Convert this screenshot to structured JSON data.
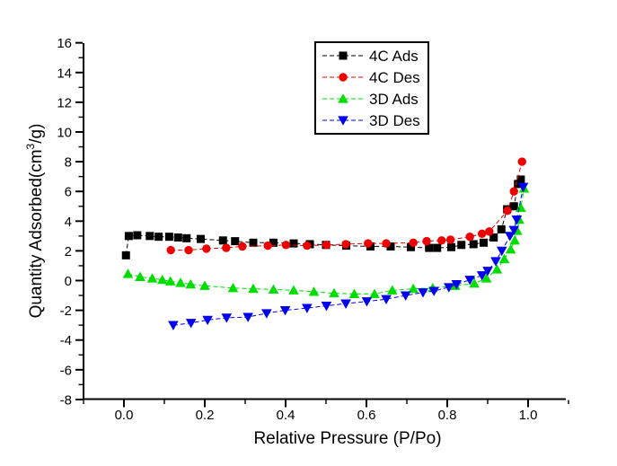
{
  "chart_data": {
    "type": "scatter",
    "title": "",
    "xlabel": "Relative Pressure (P/Po)",
    "ylabel": "Quantity Adsorbed(cm³/g)",
    "ylabel_parts": {
      "prefix": "Quantity Adsorbed(cm",
      "sup": "3",
      "suffix": "/g)"
    },
    "xlim": [
      -0.1,
      1.1
    ],
    "ylim": [
      -8,
      16
    ],
    "x_major_ticks": [
      0.0,
      0.2,
      0.4,
      0.6,
      0.8,
      1.0
    ],
    "x_minor_step": 0.1,
    "y_major_ticks": [
      -8,
      -6,
      -4,
      -2,
      0,
      2,
      4,
      6,
      8,
      10,
      12,
      14,
      16
    ],
    "y_minor_step": 1,
    "grid": false,
    "legend_position": "top-right-inside",
    "axis_color": "#000000",
    "background_color": "#ffffff",
    "line_style": "dashed",
    "series": [
      {
        "name": "4C Ads",
        "color": "#000000",
        "marker": "square",
        "points": [
          [
            0.005,
            1.7
          ],
          [
            0.012,
            3.0
          ],
          [
            0.033,
            3.05
          ],
          [
            0.064,
            3.0
          ],
          [
            0.086,
            2.95
          ],
          [
            0.112,
            2.95
          ],
          [
            0.134,
            2.9
          ],
          [
            0.155,
            2.85
          ],
          [
            0.19,
            2.8
          ],
          [
            0.245,
            2.7
          ],
          [
            0.275,
            2.65
          ],
          [
            0.32,
            2.55
          ],
          [
            0.37,
            2.55
          ],
          [
            0.42,
            2.5
          ],
          [
            0.46,
            2.45
          ],
          [
            0.5,
            2.4
          ],
          [
            0.55,
            2.35
          ],
          [
            0.61,
            2.3
          ],
          [
            0.66,
            2.3
          ],
          [
            0.71,
            2.25
          ],
          [
            0.755,
            2.2
          ],
          [
            0.775,
            2.2
          ],
          [
            0.81,
            2.25
          ],
          [
            0.835,
            2.4
          ],
          [
            0.865,
            2.45
          ],
          [
            0.89,
            2.55
          ],
          [
            0.915,
            2.9
          ],
          [
            0.934,
            3.45
          ],
          [
            0.948,
            4.8
          ],
          [
            0.965,
            5.0
          ],
          [
            0.975,
            6.5
          ],
          [
            0.982,
            6.8
          ]
        ]
      },
      {
        "name": "4C Des",
        "color": "#ee0000",
        "marker": "circle",
        "points": [
          [
            0.116,
            2.05
          ],
          [
            0.16,
            2.05
          ],
          [
            0.204,
            2.15
          ],
          [
            0.253,
            2.2
          ],
          [
            0.293,
            2.3
          ],
          [
            0.356,
            2.35
          ],
          [
            0.401,
            2.4
          ],
          [
            0.453,
            2.35
          ],
          [
            0.501,
            2.4
          ],
          [
            0.549,
            2.45
          ],
          [
            0.604,
            2.5
          ],
          [
            0.649,
            2.5
          ],
          [
            0.716,
            2.55
          ],
          [
            0.749,
            2.65
          ],
          [
            0.786,
            2.7
          ],
          [
            0.808,
            2.75
          ],
          [
            0.856,
            2.95
          ],
          [
            0.886,
            3.15
          ],
          [
            0.904,
            3.3
          ],
          [
            0.949,
            4.7
          ],
          [
            0.965,
            6.0
          ],
          [
            0.985,
            8.0
          ]
        ]
      },
      {
        "name": "3D Ads",
        "color": "#00dd00",
        "marker": "triangle-up",
        "points": [
          [
            0.01,
            0.45
          ],
          [
            0.04,
            0.25
          ],
          [
            0.07,
            0.15
          ],
          [
            0.095,
            0.05
          ],
          [
            0.115,
            -0.05
          ],
          [
            0.14,
            -0.15
          ],
          [
            0.165,
            -0.25
          ],
          [
            0.2,
            -0.35
          ],
          [
            0.27,
            -0.5
          ],
          [
            0.32,
            -0.55
          ],
          [
            0.37,
            -0.6
          ],
          [
            0.42,
            -0.65
          ],
          [
            0.47,
            -0.75
          ],
          [
            0.52,
            -0.85
          ],
          [
            0.57,
            -0.9
          ],
          [
            0.62,
            -0.9
          ],
          [
            0.664,
            -0.65
          ],
          [
            0.716,
            -0.55
          ],
          [
            0.764,
            -0.5
          ],
          [
            0.82,
            -0.35
          ],
          [
            0.867,
            -0.2
          ],
          [
            0.897,
            0.15
          ],
          [
            0.923,
            0.75
          ],
          [
            0.941,
            1.45
          ],
          [
            0.957,
            2.1
          ],
          [
            0.967,
            2.7
          ],
          [
            0.973,
            3.35
          ],
          [
            0.978,
            4.1
          ],
          [
            0.982,
            4.9
          ],
          [
            0.99,
            6.2
          ]
        ]
      },
      {
        "name": "3D Des",
        "color": "#0000ee",
        "marker": "triangle-down",
        "points": [
          [
            0.122,
            -3.0
          ],
          [
            0.166,
            -2.85
          ],
          [
            0.207,
            -2.65
          ],
          [
            0.254,
            -2.5
          ],
          [
            0.307,
            -2.45
          ],
          [
            0.353,
            -2.2
          ],
          [
            0.399,
            -2.0
          ],
          [
            0.453,
            -1.85
          ],
          [
            0.501,
            -1.7
          ],
          [
            0.549,
            -1.55
          ],
          [
            0.601,
            -1.4
          ],
          [
            0.649,
            -1.25
          ],
          [
            0.697,
            -1.0
          ],
          [
            0.74,
            -0.8
          ],
          [
            0.767,
            -0.7
          ],
          [
            0.804,
            -0.45
          ],
          [
            0.823,
            -0.25
          ],
          [
            0.856,
            0.05
          ],
          [
            0.886,
            0.35
          ],
          [
            0.9,
            0.65
          ],
          [
            0.92,
            1.3
          ],
          [
            0.935,
            2.0
          ],
          [
            0.955,
            3.0
          ],
          [
            0.965,
            3.4
          ],
          [
            0.972,
            4.1
          ],
          [
            0.988,
            6.3
          ]
        ]
      }
    ]
  }
}
